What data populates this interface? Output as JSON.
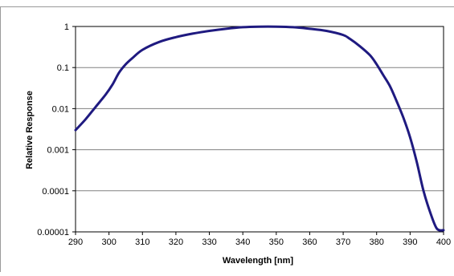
{
  "chart_data": {
    "type": "line",
    "title": "",
    "xlabel": "Wavelength [nm]",
    "ylabel": "Relative Response",
    "xlim": [
      290,
      400
    ],
    "ylim": [
      1e-05,
      1
    ],
    "yscale": "log",
    "x_ticks": [
      "290",
      "300",
      "310",
      "320",
      "330",
      "340",
      "350",
      "360",
      "370",
      "380",
      "390",
      "400"
    ],
    "y_ticks": [
      "1",
      "0.1",
      "0.01",
      "0.001",
      "0.0001",
      "0.00001"
    ],
    "grid": "horizontal major gridlines",
    "legend": "none",
    "colors": {
      "line": "#1f1a80",
      "grid": "#808080",
      "axes": "#000000"
    },
    "series": [
      {
        "x": [
          290,
          293,
          296,
          299,
          301,
          303,
          305,
          307,
          310,
          315,
          320,
          325,
          330,
          335,
          340,
          345,
          350,
          355,
          360,
          365,
          370,
          372,
          375,
          378,
          380,
          382,
          384,
          386,
          388,
          390,
          392,
          394,
          396,
          398,
          400
        ],
        "values": [
          0.003,
          0.0055,
          0.011,
          0.022,
          0.038,
          0.075,
          0.12,
          0.17,
          0.27,
          0.42,
          0.55,
          0.67,
          0.78,
          0.88,
          0.96,
          0.99,
          0.99,
          0.96,
          0.88,
          0.78,
          0.62,
          0.5,
          0.33,
          0.2,
          0.12,
          0.065,
          0.035,
          0.015,
          0.006,
          0.002,
          0.0005,
          0.0001,
          3e-05,
          1.2e-05,
          1.1e-05
        ]
      }
    ]
  }
}
